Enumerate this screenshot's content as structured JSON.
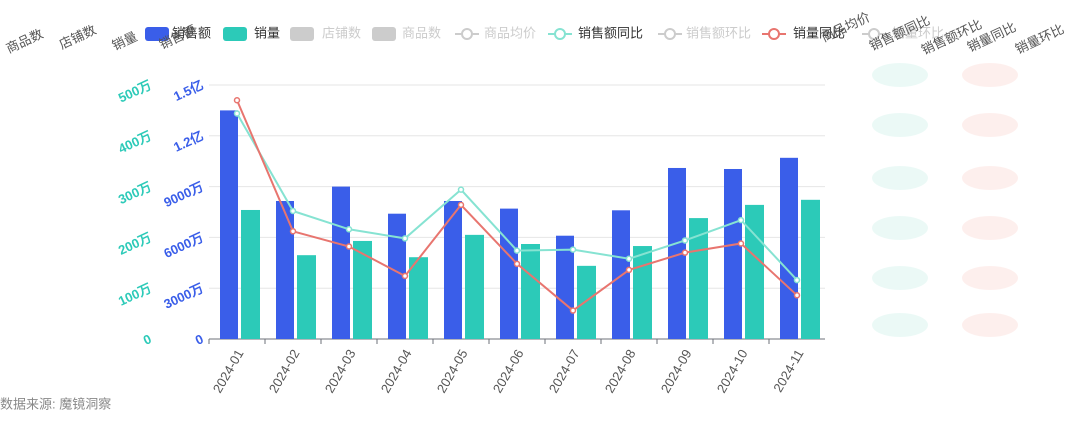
{
  "chart_data": {
    "type": "bar-line",
    "axis_names": [
      "商品数",
      "店铺数",
      "销量",
      "销售额",
      "商品均价",
      "销售额同比",
      "销售额环比",
      "销量同比",
      "销量环比"
    ],
    "categories": [
      "2024-01",
      "2024-02",
      "2024-03",
      "2024-04",
      "2024-05",
      "2024-06",
      "2024-07",
      "2024-08",
      "2024-09",
      "2024-10",
      "2024-11"
    ],
    "ylim": [
      0,
      150000000
    ],
    "yticks": [
      0,
      {
        "value": 30000000,
        "label": "3000万"
      },
      {
        "value": 60000000,
        "label": "6000万"
      },
      {
        "value": 90000000,
        "label": "9000万"
      },
      {
        "value": 120000000,
        "label": "1.2亿"
      },
      {
        "value": 150000000,
        "label": "1.5亿"
      }
    ],
    "y3lim": [
      0,
      5000000
    ],
    "y3ticks": [
      0,
      {
        "value": 1000000,
        "label": "100万"
      },
      {
        "value": 2000000,
        "label": "200万"
      },
      {
        "value": 3000000,
        "label": "300万"
      },
      {
        "value": 4000000,
        "label": "400万"
      },
      {
        "value": 5000000,
        "label": "500万"
      }
    ],
    "y2lim": [
      -100,
      150
    ],
    "grid": true,
    "series": [
      {
        "name": "销售额",
        "kind": "bar",
        "axis": "y",
        "color": "#3a5ee9",
        "values": [
          135000000,
          81500000,
          90000000,
          74000000,
          81500000,
          77000000,
          61000000,
          76000000,
          101000000,
          100400000,
          107000000
        ]
      },
      {
        "name": "销量",
        "kind": "bar",
        "axis": "y3",
        "color": "#2ccab8",
        "values": [
          2540000,
          1650000,
          1930000,
          1610000,
          2050000,
          1870000,
          1440000,
          1830000,
          2380000,
          2640000,
          2740000
        ]
      },
      {
        "name": "店铺数",
        "kind": "bar",
        "visible": false,
        "color": "#cccccc"
      },
      {
        "name": "商品数",
        "kind": "bar",
        "visible": false,
        "color": "#cccccc"
      },
      {
        "name": "商品均价",
        "kind": "line",
        "visible": false,
        "color": "#cccccc"
      },
      {
        "name": "销售额同比",
        "kind": "line",
        "axis": "y2",
        "color": "#86e3d2",
        "values": [
          122,
          26,
          8,
          -1,
          47,
          -13,
          -12,
          -21,
          -3,
          17,
          -42
        ]
      },
      {
        "name": "销售额环比",
        "kind": "line",
        "visible": false,
        "color": "#cccccc"
      },
      {
        "name": "销量同比",
        "kind": "line",
        "axis": "y2",
        "color": "#e8756f",
        "values": [
          135,
          6,
          -9,
          -38,
          32,
          -26,
          -72,
          -32,
          -15,
          -6,
          -57
        ]
      },
      {
        "name": "销量环比",
        "kind": "line",
        "visible": false,
        "color": "#cccccc"
      }
    ],
    "source": "数据来源: 魔镜洞察"
  }
}
